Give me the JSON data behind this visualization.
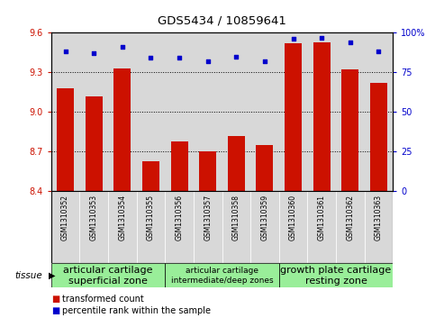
{
  "title": "GDS5434 / 10859641",
  "samples": [
    "GSM1310352",
    "GSM1310353",
    "GSM1310354",
    "GSM1310355",
    "GSM1310356",
    "GSM1310357",
    "GSM1310358",
    "GSM1310359",
    "GSM1310360",
    "GSM1310361",
    "GSM1310362",
    "GSM1310363"
  ],
  "bar_values": [
    9.18,
    9.12,
    9.33,
    8.63,
    8.78,
    8.7,
    8.82,
    8.75,
    9.52,
    9.53,
    9.32,
    9.22
  ],
  "percentile_values": [
    88,
    87,
    91,
    84,
    84,
    82,
    85,
    82,
    96,
    97,
    94,
    88
  ],
  "ylim": [
    8.4,
    9.6
  ],
  "yticks_left": [
    8.4,
    8.7,
    9.0,
    9.3,
    9.6
  ],
  "yticks_right": [
    0,
    25,
    50,
    75,
    100
  ],
  "bar_color": "#cc1100",
  "dot_color": "#0000cc",
  "tissue_groups": [
    {
      "label": "articular cartilage\nsuperficial zone",
      "start": 0,
      "end": 4,
      "color": "#99ee99",
      "fontsize": 8
    },
    {
      "label": "articular cartilage\nintermediate/deep zones",
      "start": 4,
      "end": 8,
      "color": "#99ee99",
      "fontsize": 6.5
    },
    {
      "label": "growth plate cartilage\nresting zone",
      "start": 8,
      "end": 12,
      "color": "#99ee99",
      "fontsize": 8
    }
  ],
  "tissue_label": "tissue",
  "legend_bar_label": "transformed count",
  "legend_dot_label": "percentile rank within the sample",
  "plot_bg_color": "#d8d8d8",
  "sample_box_color": "#d8d8d8"
}
